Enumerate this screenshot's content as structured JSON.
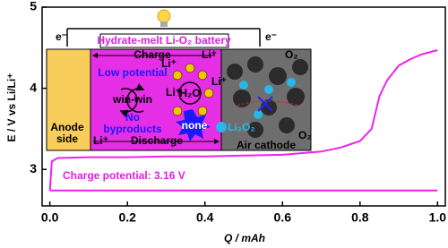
{
  "chart_data": {
    "type": "line",
    "x_label": "Q / mAh",
    "y_label": "E / V vs Li/Li⁺",
    "xlim": [
      -0.02,
      1.02
    ],
    "ylim": [
      2.55,
      5
    ],
    "xticks": [
      {
        "value": 0,
        "label": "0.0"
      },
      0.2,
      0.4,
      0.6,
      0.8,
      {
        "value": 1,
        "label": "1.0"
      }
    ],
    "yticks": [
      3,
      4,
      5
    ],
    "annotation": "Charge potential: 3.16 V",
    "series": [
      {
        "color": "#ee22ee",
        "x": [
          0,
          0.005,
          0.02,
          0.1,
          0.2,
          0.3,
          0.4,
          0.5,
          0.6,
          0.7,
          0.75,
          0.8,
          0.83,
          0.85,
          0.87,
          0.9,
          0.93,
          0.96,
          1.0
        ],
        "values": [
          2.74,
          3.1,
          3.14,
          3.15,
          3.15,
          3.16,
          3.16,
          3.17,
          3.18,
          3.22,
          3.27,
          3.35,
          3.5,
          3.9,
          4.1,
          4.28,
          4.36,
          4.42,
          4.47
        ]
      },
      {
        "color": "#ee22ee",
        "x": [
          0,
          0.1,
          0.3,
          0.5,
          0.7,
          0.9,
          1.0
        ],
        "values": [
          2.74,
          2.74,
          2.74,
          2.74,
          2.74,
          2.74,
          2.74
        ]
      }
    ]
  },
  "inset": {
    "title": "Hydrate-melt Li-O₂ battery",
    "electron_left": "e⁻",
    "electron_right": "e⁻",
    "charge": "Charge",
    "discharge": "Discharge",
    "li_top": "Li⁺",
    "li_bottom": "Li⁺",
    "low_potential": "Low potential",
    "win_win": "win-win",
    "no": "No",
    "byproducts": "byproducts",
    "anode": "Anode",
    "side": "side",
    "water": "H₂O",
    "li_a": "Li⁺",
    "li_b": "Li⁺",
    "li_c": "Li⁺",
    "none": "none",
    "peroxide": "Li₂O₂",
    "oxygen_top": "O₂",
    "oxygen_bottom": "O₂",
    "cathode": "Air cathode"
  }
}
